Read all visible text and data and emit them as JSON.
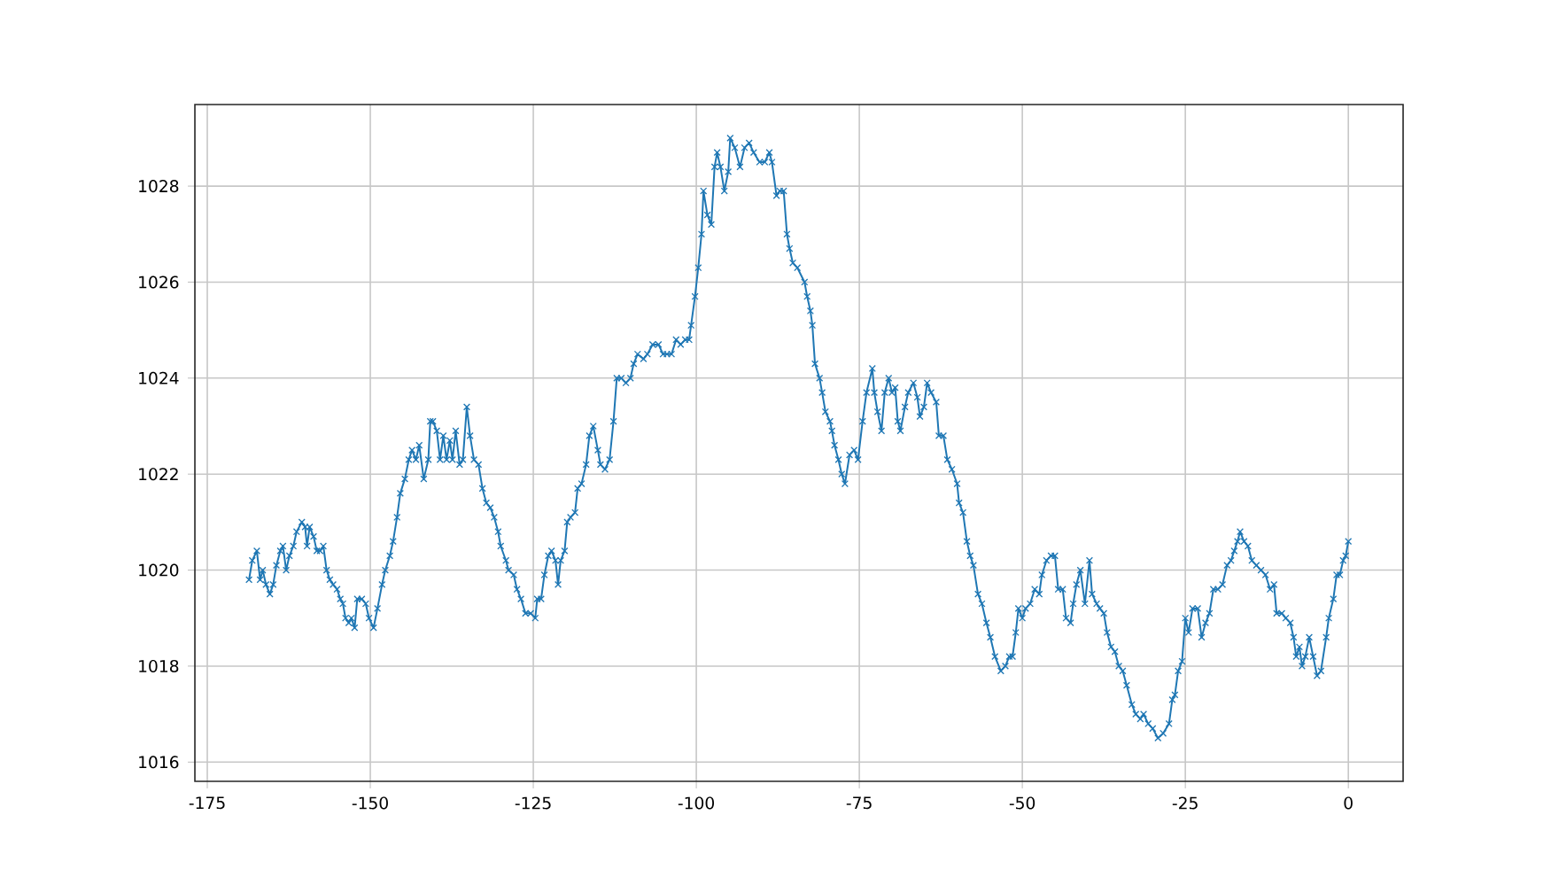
{
  "chart_data": {
    "type": "line",
    "color": "#1f77b4",
    "marker": "cross",
    "grid": true,
    "xlim": [
      -176.9,
      8.4
    ],
    "ylim": [
      1015.6,
      1029.7
    ],
    "xticks": [
      -175,
      -150,
      -125,
      -100,
      -75,
      -50,
      -25,
      0
    ],
    "yticks": [
      1016,
      1018,
      1020,
      1022,
      1024,
      1026,
      1028
    ],
    "x": [
      -168.6,
      -168.1,
      -167.4,
      -166.9,
      -166.5,
      -166.0,
      -165.4,
      -164.9,
      -164.4,
      -163.8,
      -163.4,
      -162.9,
      -162.4,
      -161.8,
      -161.3,
      -160.5,
      -160.0,
      -159.7,
      -159.3,
      -158.7,
      -158.2,
      -157.7,
      -157.2,
      -156.7,
      -156.2,
      -155.7,
      -155.1,
      -154.6,
      -154.2,
      -153.8,
      -153.3,
      -152.9,
      -152.4,
      -152.0,
      -151.3,
      -150.7,
      -150.2,
      -149.5,
      -148.9,
      -148.2,
      -147.7,
      -147.0,
      -146.5,
      -145.9,
      -145.4,
      -144.7,
      -144.1,
      -143.6,
      -143.0,
      -142.5,
      -141.8,
      -141.1,
      -140.8,
      -140.4,
      -139.8,
      -139.3,
      -138.8,
      -138.3,
      -137.8,
      -137.4,
      -136.9,
      -136.3,
      -135.8,
      -135.2,
      -134.7,
      -134.1,
      -133.4,
      -132.8,
      -132.2,
      -131.6,
      -131.0,
      -130.4,
      -130.0,
      -129.2,
      -128.8,
      -128.0,
      -127.5,
      -126.9,
      -126.2,
      -125.4,
      -124.7,
      -124.4,
      -123.8,
      -123.3,
      -122.7,
      -122.2,
      -121.6,
      -121.2,
      -120.8,
      -120.2,
      -119.8,
      -119.3,
      -118.6,
      -118.2,
      -117.6,
      -116.9,
      -116.4,
      -115.8,
      -115.1,
      -114.7,
      -114.0,
      -113.3,
      -112.7,
      -112.2,
      -111.5,
      -110.8,
      -110.1,
      -109.6,
      -109.0,
      -108.1,
      -107.5,
      -106.7,
      -105.8,
      -105.1,
      -104.5,
      -103.8,
      -103.1,
      -102.4,
      -101.7,
      -101.1,
      -100.8,
      -100.2,
      -99.7,
      -99.2,
      -98.9,
      -98.3,
      -97.7,
      -97.2,
      -96.8,
      -96.3,
      -95.7,
      -95.1,
      -94.8,
      -94.1,
      -93.3,
      -92.6,
      -91.9,
      -91.2,
      -90.3,
      -89.5,
      -88.8,
      -88.4,
      -87.7,
      -87.2,
      -86.6,
      -86.1,
      -85.7,
      -85.2,
      -84.5,
      -83.4,
      -83.0,
      -82.5,
      -82.2,
      -81.8,
      -81.1,
      -80.7,
      -80.2,
      -79.5,
      -79.2,
      -78.8,
      -78.2,
      -77.7,
      -77.2,
      -76.5,
      -75.8,
      -75.2,
      -74.5,
      -73.9,
      -73.0,
      -72.7,
      -72.2,
      -71.6,
      -71.1,
      -70.5,
      -70.0,
      -69.5,
      -69.1,
      -68.7,
      -68.0,
      -67.5,
      -66.7,
      -66.1,
      -65.7,
      -65.1,
      -64.6,
      -64.0,
      -63.2,
      -62.8,
      -62.1,
      -61.5,
      -60.8,
      -60.0,
      -59.7,
      -59.1,
      -58.5,
      -58.0,
      -57.5,
      -56.8,
      -56.2,
      -55.5,
      -54.9,
      -54.2,
      -53.3,
      -52.6,
      -52.0,
      -51.5,
      -51.0,
      -50.6,
      -50.0,
      -49.5,
      -48.8,
      -48.1,
      -47.4,
      -47.0,
      -46.3,
      -45.6,
      -45.0,
      -44.5,
      -43.8,
      -43.3,
      -42.6,
      -42.2,
      -41.7,
      -41.1,
      -40.4,
      -39.7,
      -39.3,
      -38.6,
      -38.1,
      -37.5,
      -37.0,
      -36.4,
      -35.8,
      -35.2,
      -34.6,
      -34.0,
      -33.2,
      -32.6,
      -31.9,
      -31.4,
      -30.7,
      -30.0,
      -29.2,
      -28.4,
      -27.5,
      -27.0,
      -26.6,
      -26.1,
      -25.5,
      -25.0,
      -24.5,
      -23.9,
      -23.1,
      -22.5,
      -21.9,
      -21.3,
      -20.7,
      -20.0,
      -19.3,
      -18.6,
      -18.0,
      -17.5,
      -17.0,
      -16.6,
      -16.0,
      -15.4,
      -14.8,
      -14.1,
      -13.4,
      -12.7,
      -12.0,
      -11.4,
      -11.0,
      -10.2,
      -9.6,
      -8.9,
      -8.4,
      -8.0,
      -7.5,
      -7.1,
      -6.6,
      -6.0,
      -5.4,
      -4.8,
      -4.2,
      -3.4,
      -3.0,
      -2.3,
      -1.8,
      -1.3,
      -0.8,
      -0.4,
      0
    ],
    "values": [
      1019.8,
      1020.2,
      1020.4,
      1019.8,
      1020.0,
      1019.7,
      1019.5,
      1019.7,
      1020.1,
      1020.4,
      1020.5,
      1020.0,
      1020.3,
      1020.5,
      1020.8,
      1021.0,
      1020.9,
      1020.5,
      1020.9,
      1020.7,
      1020.4,
      1020.4,
      1020.5,
      1020.0,
      1019.8,
      1019.7,
      1019.6,
      1019.4,
      1019.3,
      1019.0,
      1018.9,
      1019.0,
      1018.8,
      1019.4,
      1019.4,
      1019.3,
      1019.0,
      1018.8,
      1019.2,
      1019.7,
      1020.0,
      1020.3,
      1020.6,
      1021.1,
      1021.6,
      1021.9,
      1022.3,
      1022.5,
      1022.3,
      1022.6,
      1021.9,
      1022.3,
      1023.1,
      1023.1,
      1022.9,
      1022.3,
      1022.8,
      1022.3,
      1022.7,
      1022.3,
      1022.9,
      1022.2,
      1022.3,
      1023.4,
      1022.8,
      1022.3,
      1022.2,
      1021.7,
      1021.4,
      1021.3,
      1021.1,
      1020.8,
      1020.5,
      1020.2,
      1020.0,
      1019.9,
      1019.6,
      1019.4,
      1019.1,
      1019.1,
      1019.0,
      1019.4,
      1019.4,
      1019.9,
      1020.3,
      1020.4,
      1020.2,
      1019.7,
      1020.2,
      1020.4,
      1021.0,
      1021.1,
      1021.2,
      1021.7,
      1021.8,
      1022.2,
      1022.8,
      1023.0,
      1022.5,
      1022.2,
      1022.1,
      1022.3,
      1023.1,
      1024.0,
      1024.0,
      1023.9,
      1024.0,
      1024.3,
      1024.5,
      1024.4,
      1024.5,
      1024.7,
      1024.7,
      1024.5,
      1024.5,
      1024.5,
      1024.8,
      1024.7,
      1024.8,
      1024.8,
      1025.1,
      1025.7,
      1026.3,
      1027.0,
      1027.9,
      1027.4,
      1027.2,
      1028.4,
      1028.7,
      1028.4,
      1027.9,
      1028.3,
      1029.0,
      1028.8,
      1028.4,
      1028.8,
      1028.9,
      1028.7,
      1028.5,
      1028.5,
      1028.7,
      1028.5,
      1027.8,
      1027.9,
      1027.9,
      1027.0,
      1026.7,
      1026.4,
      1026.3,
      1026.0,
      1025.7,
      1025.4,
      1025.1,
      1024.3,
      1024.0,
      1023.7,
      1023.3,
      1023.1,
      1022.9,
      1022.6,
      1022.3,
      1022.0,
      1021.8,
      1022.4,
      1022.5,
      1022.3,
      1023.1,
      1023.7,
      1024.2,
      1023.7,
      1023.3,
      1022.9,
      1023.7,
      1024.0,
      1023.7,
      1023.8,
      1023.1,
      1022.9,
      1023.4,
      1023.7,
      1023.9,
      1023.6,
      1023.2,
      1023.4,
      1023.9,
      1023.7,
      1023.5,
      1022.8,
      1022.8,
      1022.3,
      1022.1,
      1021.8,
      1021.4,
      1021.2,
      1020.6,
      1020.3,
      1020.1,
      1019.5,
      1019.3,
      1018.9,
      1018.6,
      1018.2,
      1017.9,
      1018.0,
      1018.2,
      1018.2,
      1018.7,
      1019.2,
      1019.0,
      1019.2,
      1019.3,
      1019.6,
      1019.5,
      1019.9,
      1020.2,
      1020.3,
      1020.3,
      1019.6,
      1019.6,
      1019.0,
      1018.9,
      1019.3,
      1019.7,
      1020.0,
      1019.3,
      1020.2,
      1019.5,
      1019.3,
      1019.2,
      1019.1,
      1018.7,
      1018.4,
      1018.3,
      1018.0,
      1017.9,
      1017.6,
      1017.2,
      1017.0,
      1016.9,
      1017.0,
      1016.8,
      1016.7,
      1016.5,
      1016.6,
      1016.8,
      1017.3,
      1017.4,
      1017.9,
      1018.1,
      1019.0,
      1018.7,
      1019.2,
      1019.2,
      1018.6,
      1018.9,
      1019.1,
      1019.6,
      1019.6,
      1019.7,
      1020.1,
      1020.2,
      1020.4,
      1020.6,
      1020.8,
      1020.6,
      1020.5,
      1020.2,
      1020.1,
      1020.0,
      1019.9,
      1019.6,
      1019.7,
      1019.1,
      1019.1,
      1019.0,
      1018.9,
      1018.6,
      1018.2,
      1018.4,
      1018.0,
      1018.2,
      1018.6,
      1018.2,
      1017.8,
      1017.9,
      1018.6,
      1019.0,
      1019.4,
      1019.9,
      1019.9,
      1020.2,
      1020.3,
      1020.6
    ]
  }
}
